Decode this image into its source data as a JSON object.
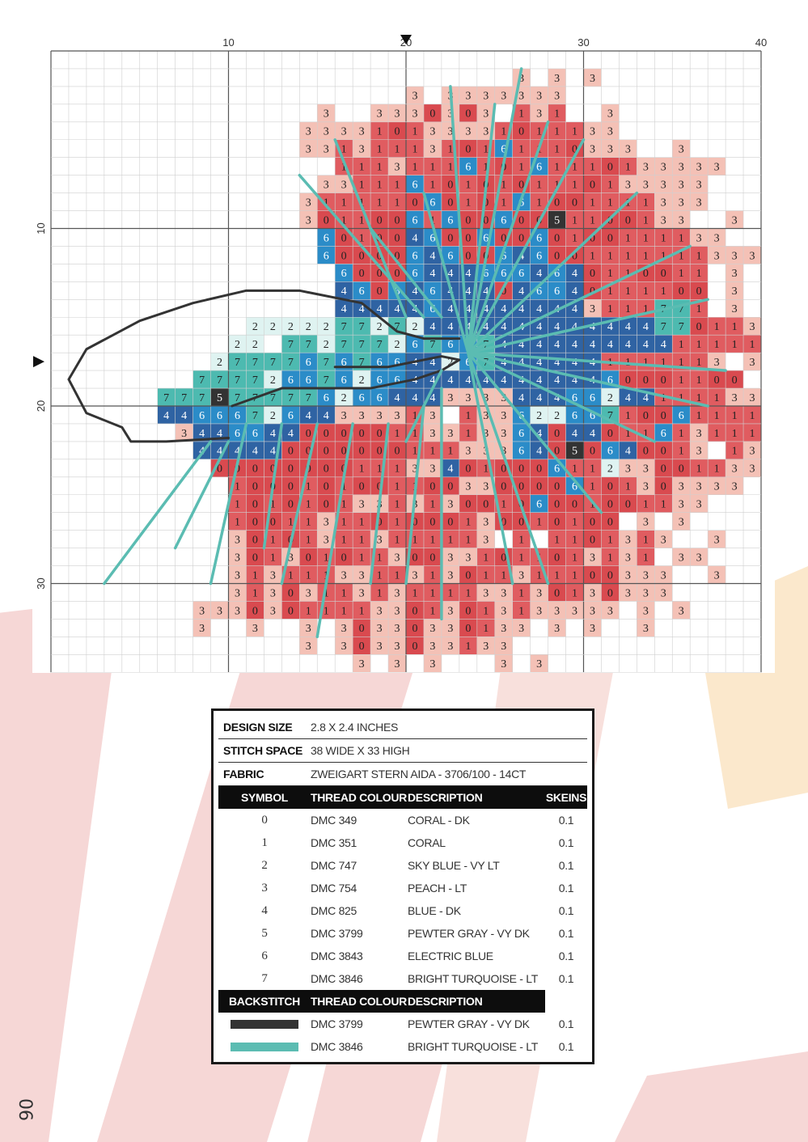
{
  "page_number": "06",
  "chart": {
    "axis_labels_top": [
      "10",
      "20",
      "30",
      "40"
    ],
    "axis_labels_left": [
      "10",
      "20",
      "30"
    ],
    "columns": 40,
    "rows": 35,
    "colors": {
      "0": "#d94a4f",
      "1": "#e05c60",
      "2": "#dff3f1",
      "3": "#f4c1b6",
      "4": "#2f63a3",
      "5": "#333333",
      "6": "#2b8cc8",
      "7": "#4dbab0",
      "grid": "#cfcfcf",
      "grid_major": "#555555",
      "backstitch_dark": "#333333",
      "backstitch_light": "#5bbcb2"
    }
  },
  "key": {
    "design_size_label": "DESIGN SIZE",
    "design_size_value": "2.8 X 2.4 INCHES",
    "stitch_space_label": "STITCH SPACE",
    "stitch_space_value": "38 WIDE X 33 HIGH",
    "fabric_label": "FABRIC",
    "fabric_value": "ZWEIGART STERN AIDA - 3706/100 - 14CT",
    "headers": [
      "SYMBOL",
      "THREAD COLOUR",
      "DESCRIPTION",
      "SKEINS"
    ],
    "threads": [
      {
        "symbol": "0",
        "thread": "DMC 349",
        "description": "CORAL - DK",
        "skeins": "0.1"
      },
      {
        "symbol": "1",
        "thread": "DMC 351",
        "description": "CORAL",
        "skeins": "0.1"
      },
      {
        "symbol": "2",
        "thread": "DMC 747",
        "description": "SKY BLUE - VY LT",
        "skeins": "0.1"
      },
      {
        "symbol": "3",
        "thread": "DMC 754",
        "description": "PEACH - LT",
        "skeins": "0.1"
      },
      {
        "symbol": "4",
        "thread": "DMC 825",
        "description": "BLUE - DK",
        "skeins": "0.1"
      },
      {
        "symbol": "5",
        "thread": "DMC 3799",
        "description": "PEWTER GRAY - VY DK",
        "skeins": "0.1"
      },
      {
        "symbol": "6",
        "thread": "DMC 3843",
        "description": "ELECTRIC BLUE",
        "skeins": "0.1"
      },
      {
        "symbol": "7",
        "thread": "DMC 3846",
        "description": "BRIGHT TURQUOISE - LT",
        "skeins": "0.1"
      }
    ],
    "backstitch_headers": [
      "BACKSTITCH",
      "THREAD COLOUR",
      "DESCRIPTION"
    ],
    "backstitch": [
      {
        "color": "#333333",
        "thread": "DMC 3799",
        "description": "PEWTER GRAY - VY DK",
        "skeins": "0.1"
      },
      {
        "color": "#5bbcb2",
        "thread": "DMC 3846",
        "description": "BRIGHT TURQUOISE - LT",
        "skeins": "0.1"
      }
    ]
  }
}
